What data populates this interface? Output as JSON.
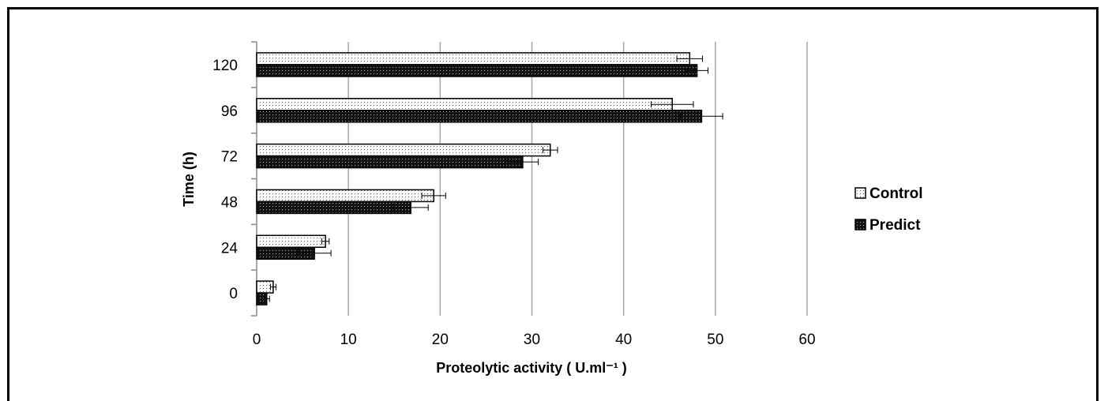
{
  "chart_data": {
    "type": "bar",
    "orientation": "horizontal",
    "categories": [
      "0",
      "24",
      "48",
      "72",
      "96",
      "120"
    ],
    "series": [
      {
        "name": "Control",
        "values": [
          1.8,
          7.5,
          19.3,
          32.0,
          45.3,
          47.2
        ],
        "errors": [
          0.3,
          0.4,
          1.3,
          0.8,
          2.3,
          1.4
        ],
        "pattern": "light-dots"
      },
      {
        "name": "Predict",
        "values": [
          1.1,
          6.3,
          16.8,
          29.0,
          48.5,
          48.0
        ],
        "errors": [
          0.3,
          1.8,
          1.9,
          1.7,
          2.3,
          1.2
        ],
        "pattern": "dark-dots"
      }
    ],
    "xlabel": "Proteolytic activity  ( U.ml⁻¹ )",
    "ylabel": "Time (h)",
    "xlim": [
      0,
      60
    ],
    "xticks": [
      "0",
      "10",
      "20",
      "30",
      "40",
      "50",
      "60"
    ],
    "grid": "vertical",
    "legend_position": "right"
  }
}
